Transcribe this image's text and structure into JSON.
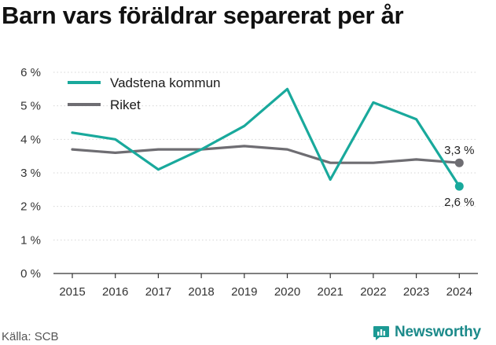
{
  "title": "Barn vars föräldrar separerat per år",
  "source": "Källa: SCB",
  "brand": {
    "name": "Newsworthy",
    "icon": "newsworthy-logo-icon",
    "color": "#1c9a94"
  },
  "colors": {
    "vadstena": "#19a99c",
    "riket": "#6e6d72",
    "grid": "#d6d6d6"
  },
  "chart_data": {
    "type": "line",
    "title": "Barn vars föräldrar separerat per år",
    "xlabel": "",
    "ylabel": "",
    "x": [
      "2015",
      "2016",
      "2017",
      "2018",
      "2019",
      "2020",
      "2021",
      "2022",
      "2023",
      "2024"
    ],
    "ylim": [
      0,
      6
    ],
    "yticks": [
      "0 %",
      "1 %",
      "2 %",
      "3 %",
      "4 %",
      "5 %",
      "6 %"
    ],
    "grid": "horizontal dotted",
    "legend": "top-left",
    "series": [
      {
        "name": "Vadstena kommun",
        "values": [
          4.2,
          4.0,
          3.1,
          3.7,
          4.4,
          5.5,
          2.8,
          5.1,
          4.6,
          2.6
        ],
        "end_label": "2,6 %"
      },
      {
        "name": "Riket",
        "values": [
          3.7,
          3.6,
          3.7,
          3.7,
          3.8,
          3.7,
          3.3,
          3.3,
          3.4,
          3.3
        ],
        "end_label": "3,3 %"
      }
    ]
  }
}
